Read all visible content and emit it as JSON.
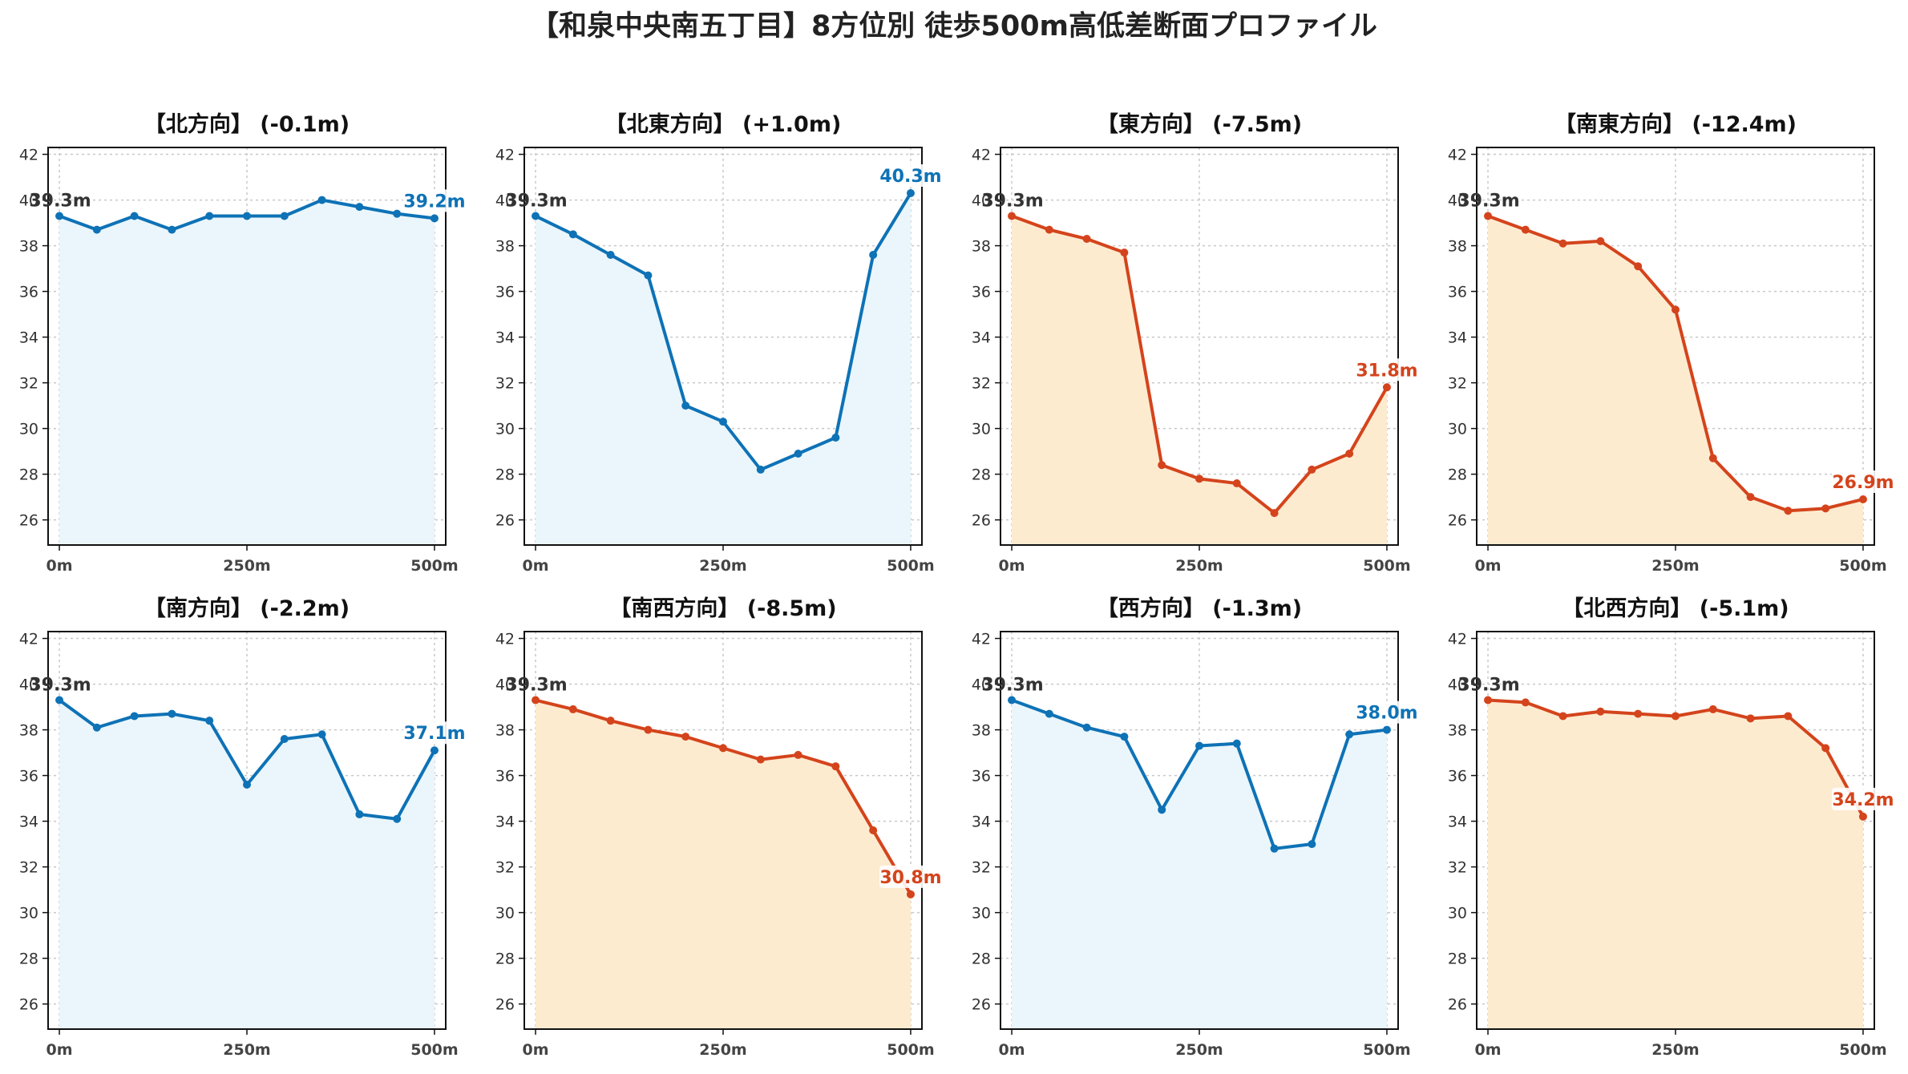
{
  "title": "【和泉中央南五丁目】8方位別 徒歩500m高低差断面プロファイル",
  "colors": {
    "up": "#0e72b6",
    "up_fill": "#eaf6fb",
    "down": "#d4441c",
    "down_fill": "#fdebd0",
    "start_label": "#333333"
  },
  "chart_data": [
    {
      "type": "area",
      "title": "【北方向】 (-0.1m)",
      "trend": "up",
      "x": [
        0,
        50,
        100,
        150,
        200,
        250,
        300,
        350,
        400,
        450,
        500
      ],
      "y": [
        39.3,
        38.7,
        39.3,
        38.7,
        39.3,
        39.3,
        39.3,
        40.0,
        39.7,
        39.4,
        39.2
      ],
      "start_label": "39.3m",
      "end_label": "39.2m",
      "xticks": [
        "0m",
        "250m",
        "500m"
      ],
      "yticks": [
        "26",
        "28",
        "30",
        "32",
        "34",
        "36",
        "38",
        "40",
        "42"
      ],
      "xlim": [
        -15,
        515
      ],
      "ylim": [
        24.9,
        42.3
      ],
      "grid": true
    },
    {
      "type": "area",
      "title": "【北東方向】 (+1.0m)",
      "trend": "up",
      "x": [
        0,
        50,
        100,
        150,
        200,
        250,
        300,
        350,
        400,
        450,
        500
      ],
      "y": [
        39.3,
        38.5,
        37.6,
        36.7,
        31.0,
        30.3,
        28.2,
        28.9,
        29.6,
        37.6,
        40.3
      ],
      "start_label": "39.3m",
      "end_label": "40.3m",
      "xticks": [
        "0m",
        "250m",
        "500m"
      ],
      "yticks": [
        "26",
        "28",
        "30",
        "32",
        "34",
        "36",
        "38",
        "40",
        "42"
      ],
      "xlim": [
        -15,
        515
      ],
      "ylim": [
        24.9,
        42.3
      ],
      "grid": true
    },
    {
      "type": "area",
      "title": "【東方向】 (-7.5m)",
      "trend": "down",
      "x": [
        0,
        50,
        100,
        150,
        200,
        250,
        300,
        350,
        400,
        450,
        500
      ],
      "y": [
        39.3,
        38.7,
        38.3,
        37.7,
        28.4,
        27.8,
        27.6,
        26.3,
        28.2,
        28.9,
        31.8
      ],
      "start_label": "39.3m",
      "end_label": "31.8m",
      "xticks": [
        "0m",
        "250m",
        "500m"
      ],
      "yticks": [
        "26",
        "28",
        "30",
        "32",
        "34",
        "36",
        "38",
        "40",
        "42"
      ],
      "xlim": [
        -15,
        515
      ],
      "ylim": [
        24.9,
        42.3
      ],
      "grid": true
    },
    {
      "type": "area",
      "title": "【南東方向】 (-12.4m)",
      "trend": "down",
      "x": [
        0,
        50,
        100,
        150,
        200,
        250,
        300,
        350,
        400,
        450,
        500
      ],
      "y": [
        39.3,
        38.7,
        38.1,
        38.2,
        37.1,
        35.2,
        28.7,
        27.0,
        26.4,
        26.5,
        26.9
      ],
      "start_label": "39.3m",
      "end_label": "26.9m",
      "xticks": [
        "0m",
        "250m",
        "500m"
      ],
      "yticks": [
        "26",
        "28",
        "30",
        "32",
        "34",
        "36",
        "38",
        "40",
        "42"
      ],
      "xlim": [
        -15,
        515
      ],
      "ylim": [
        24.9,
        42.3
      ],
      "grid": true
    },
    {
      "type": "area",
      "title": "【南方向】 (-2.2m)",
      "trend": "up",
      "x": [
        0,
        50,
        100,
        150,
        200,
        250,
        300,
        350,
        400,
        450,
        500
      ],
      "y": [
        39.3,
        38.1,
        38.6,
        38.7,
        38.4,
        35.6,
        37.6,
        37.8,
        34.3,
        34.1,
        37.1
      ],
      "start_label": "39.3m",
      "end_label": "37.1m",
      "xticks": [
        "0m",
        "250m",
        "500m"
      ],
      "yticks": [
        "26",
        "28",
        "30",
        "32",
        "34",
        "36",
        "38",
        "40",
        "42"
      ],
      "xlim": [
        -15,
        515
      ],
      "ylim": [
        24.9,
        42.3
      ],
      "grid": true
    },
    {
      "type": "area",
      "title": "【南西方向】 (-8.5m)",
      "trend": "down",
      "x": [
        0,
        50,
        100,
        150,
        200,
        250,
        300,
        350,
        400,
        450,
        500
      ],
      "y": [
        39.3,
        38.9,
        38.4,
        38.0,
        37.7,
        37.2,
        36.7,
        36.9,
        36.4,
        33.6,
        30.8
      ],
      "start_label": "39.3m",
      "end_label": "30.8m",
      "xticks": [
        "0m",
        "250m",
        "500m"
      ],
      "yticks": [
        "26",
        "28",
        "30",
        "32",
        "34",
        "36",
        "38",
        "40",
        "42"
      ],
      "xlim": [
        -15,
        515
      ],
      "ylim": [
        24.9,
        42.3
      ],
      "grid": true
    },
    {
      "type": "area",
      "title": "【西方向】 (-1.3m)",
      "trend": "up",
      "x": [
        0,
        50,
        100,
        150,
        200,
        250,
        300,
        350,
        400,
        450,
        500
      ],
      "y": [
        39.3,
        38.7,
        38.1,
        37.7,
        34.5,
        37.3,
        37.4,
        32.8,
        33.0,
        37.8,
        38.0
      ],
      "start_label": "39.3m",
      "end_label": "38.0m",
      "xticks": [
        "0m",
        "250m",
        "500m"
      ],
      "yticks": [
        "26",
        "28",
        "30",
        "32",
        "34",
        "36",
        "38",
        "40",
        "42"
      ],
      "xlim": [
        -15,
        515
      ],
      "ylim": [
        24.9,
        42.3
      ],
      "grid": true
    },
    {
      "type": "area",
      "title": "【北西方向】 (-5.1m)",
      "trend": "down",
      "x": [
        0,
        50,
        100,
        150,
        200,
        250,
        300,
        350,
        400,
        450,
        500
      ],
      "y": [
        39.3,
        39.2,
        38.6,
        38.8,
        38.7,
        38.6,
        38.9,
        38.5,
        38.6,
        37.2,
        34.2
      ],
      "start_label": "39.3m",
      "end_label": "34.2m",
      "xticks": [
        "0m",
        "250m",
        "500m"
      ],
      "yticks": [
        "26",
        "28",
        "30",
        "32",
        "34",
        "36",
        "38",
        "40",
        "42"
      ],
      "xlim": [
        -15,
        515
      ],
      "ylim": [
        24.9,
        42.3
      ],
      "grid": true
    }
  ]
}
